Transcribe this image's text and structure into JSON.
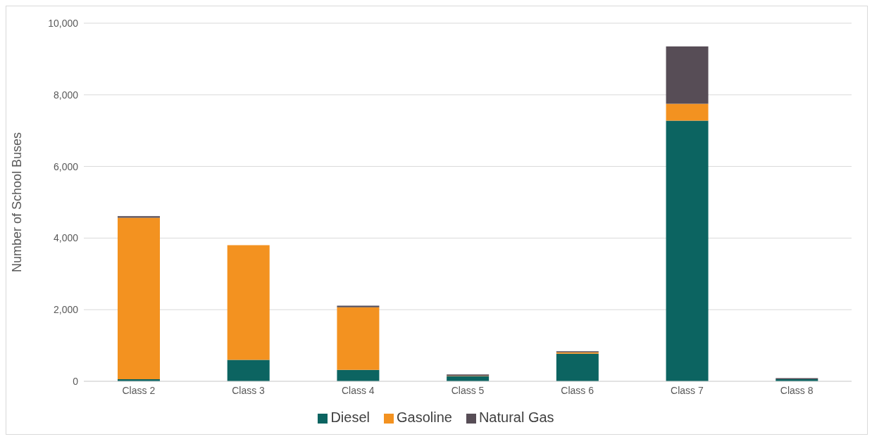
{
  "chart_data": {
    "type": "bar",
    "stacked": true,
    "ylabel": "Number of School Buses",
    "categories": [
      "Class 2",
      "Class 3",
      "Class 4",
      "Class 5",
      "Class 6",
      "Class 7",
      "Class 8"
    ],
    "series": [
      {
        "name": "Diesel",
        "color": "#0c6461",
        "values": [
          60,
          600,
          320,
          140,
          770,
          7280,
          60
        ]
      },
      {
        "name": "Gasoline",
        "color": "#f39220",
        "values": [
          4510,
          3200,
          1750,
          10,
          40,
          470,
          0
        ]
      },
      {
        "name": "Natural Gas",
        "color": "#574d56",
        "values": [
          40,
          0,
          40,
          40,
          30,
          1600,
          30
        ]
      }
    ],
    "ylim": [
      0,
      10000
    ],
    "yticks": [
      0,
      {
        "value": 2000,
        "label": "2,000"
      },
      {
        "value": 4000,
        "label": "4,000"
      },
      {
        "value": 6000,
        "label": "6,000"
      },
      {
        "value": 8000,
        "label": "8,000"
      },
      {
        "value": 10000,
        "label": "10,000"
      }
    ],
    "grid": "y",
    "legend": "bottom"
  }
}
